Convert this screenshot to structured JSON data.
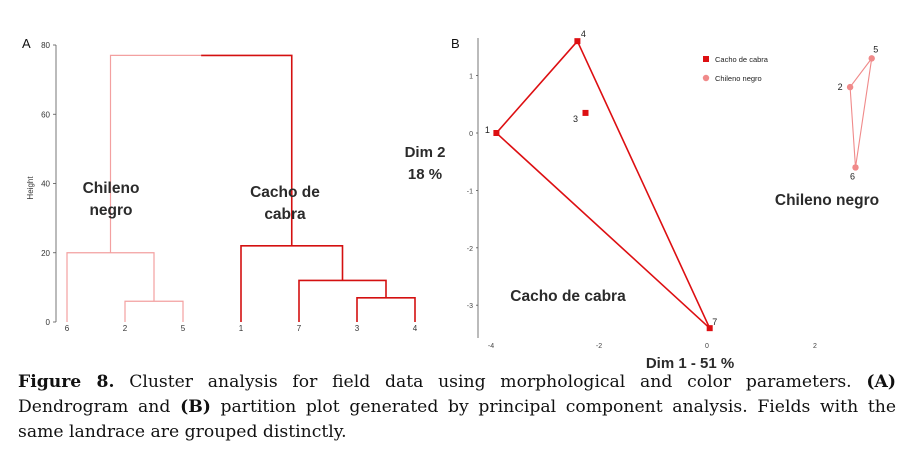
{
  "panels": {
    "a_label": "A",
    "b_label": "B"
  },
  "colors": {
    "cacho": "#dd0f12",
    "chileno": "#f08a8a",
    "dendro_cacho": "#d41010",
    "dendro_chileno": "#f3a0a0",
    "hull_chileno": "#f08a8a"
  },
  "chart_data": [
    {
      "type": "dendrogram",
      "ylabel": "Height",
      "ylim": [
        0,
        80
      ],
      "yticks": [
        "0",
        "20",
        "40",
        "60",
        "80"
      ],
      "leaves": [
        "6",
        "2",
        "5",
        "1",
        "7",
        "3",
        "4"
      ],
      "merges": [
        {
          "a": "2",
          "b": "5",
          "height": 6,
          "group": "chileno"
        },
        {
          "a": "6",
          "b": "(2,5)",
          "height": 20,
          "group": "chileno"
        },
        {
          "a": "3",
          "b": "4",
          "height": 7,
          "group": "cacho"
        },
        {
          "a": "7",
          "b": "(3,4)",
          "height": 12,
          "group": "cacho"
        },
        {
          "a": "1",
          "b": "(7,3,4)",
          "height": 22,
          "group": "cacho"
        },
        {
          "a": "chileno",
          "b": "cacho",
          "height": 77,
          "group": "root"
        }
      ],
      "cluster_labels": [
        {
          "group": "chileno",
          "line1": "Chileno",
          "line2": "negro"
        },
        {
          "group": "cacho",
          "line1": "Cacho de",
          "line2": "cabra"
        }
      ]
    },
    {
      "type": "scatter",
      "xlabel": "Dim 1 - 51 %",
      "ylabel_line1": "Dim 2",
      "ylabel_line2": "18 %",
      "xticks": [
        -4,
        -2,
        0,
        2
      ],
      "yticks": [
        1,
        0,
        -1,
        -2,
        -3
      ],
      "xtick_labels": [
        "-4",
        "-2",
        "0",
        "2"
      ],
      "ytick_labels": [
        "1",
        "0",
        "-1",
        "-2",
        "-3"
      ],
      "xlim": [
        -4.2,
        3.3
      ],
      "ylim": [
        -3.45,
        1.7
      ],
      "series": [
        {
          "name": "Cacho de cabra",
          "group": "cacho",
          "points": [
            {
              "label": "4",
              "x": -2.4,
              "y": 1.6
            },
            {
              "label": "3",
              "x": -2.25,
              "y": 0.35
            },
            {
              "label": "1",
              "x": -3.9,
              "y": 0.0
            },
            {
              "label": "7",
              "x": 0.05,
              "y": -3.4
            }
          ],
          "hull": [
            "4",
            "1",
            "7"
          ]
        },
        {
          "name": "Chileno negro",
          "group": "chileno",
          "points": [
            {
              "label": "5",
              "x": 3.05,
              "y": 1.3
            },
            {
              "label": "2",
              "x": 2.65,
              "y": 0.8
            },
            {
              "label": "6",
              "x": 2.75,
              "y": -0.6
            }
          ],
          "hull": [
            "5",
            "2",
            "6"
          ]
        }
      ],
      "group_labels": [
        {
          "group": "cacho",
          "text": "Cacho de cabra"
        },
        {
          "group": "chileno",
          "text": "Chileno negro"
        }
      ],
      "legend": "top-right"
    }
  ],
  "caption": {
    "figure_label": "Figure 8.",
    "text_1": " Cluster analysis for field data using morphological and color parameters. ",
    "panel_a": "(A)",
    "text_2": " Dendrogram and ",
    "panel_b": "(B)",
    "text_3": " partition plot generated by principal component analysis. Fields with the same landrace are grouped distinctly."
  }
}
